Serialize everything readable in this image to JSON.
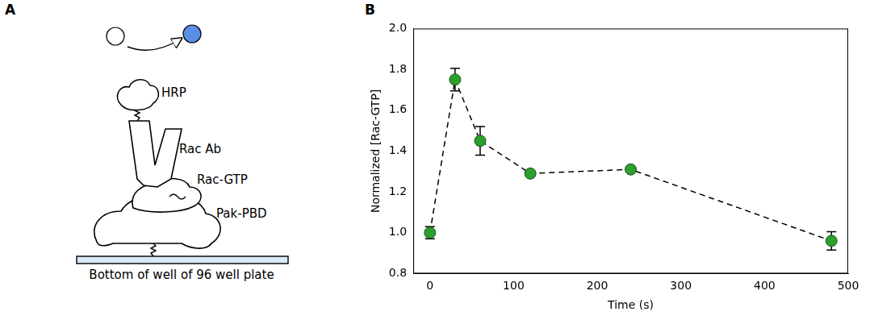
{
  "panel_labels": [
    "A",
    "B"
  ],
  "diagram": {
    "labels": [
      "HRP",
      "Rac Ab",
      "Rac-GTP",
      "Pak-PBD"
    ],
    "surface": "Bottom of well of 96 well plate"
  },
  "chart_data": {
    "type": "line",
    "x": [
      0,
      30,
      60,
      120,
      240,
      480
    ],
    "values": [
      1.0,
      1.75,
      1.45,
      1.29,
      1.31,
      0.96
    ],
    "errors": [
      0.03,
      0.055,
      0.07,
      0.01,
      0.012,
      0.045
    ],
    "color": "#2ca02c",
    "marker": "circle",
    "line_style": "dashed",
    "x_label": "Time (s)",
    "y_label": "Normalized [Rac-GTP]",
    "xlim": [
      -20,
      500
    ],
    "xticks": [
      0,
      100,
      200,
      300,
      400,
      500
    ],
    "ylim": [
      0.8,
      2.0
    ],
    "yticks": [
      0.8,
      {
        "value": 1,
        "label": "1.0"
      },
      1.2,
      1.4,
      1.6,
      1.8,
      {
        "value": 2,
        "label": "2.0"
      }
    ],
    "grid": false
  }
}
